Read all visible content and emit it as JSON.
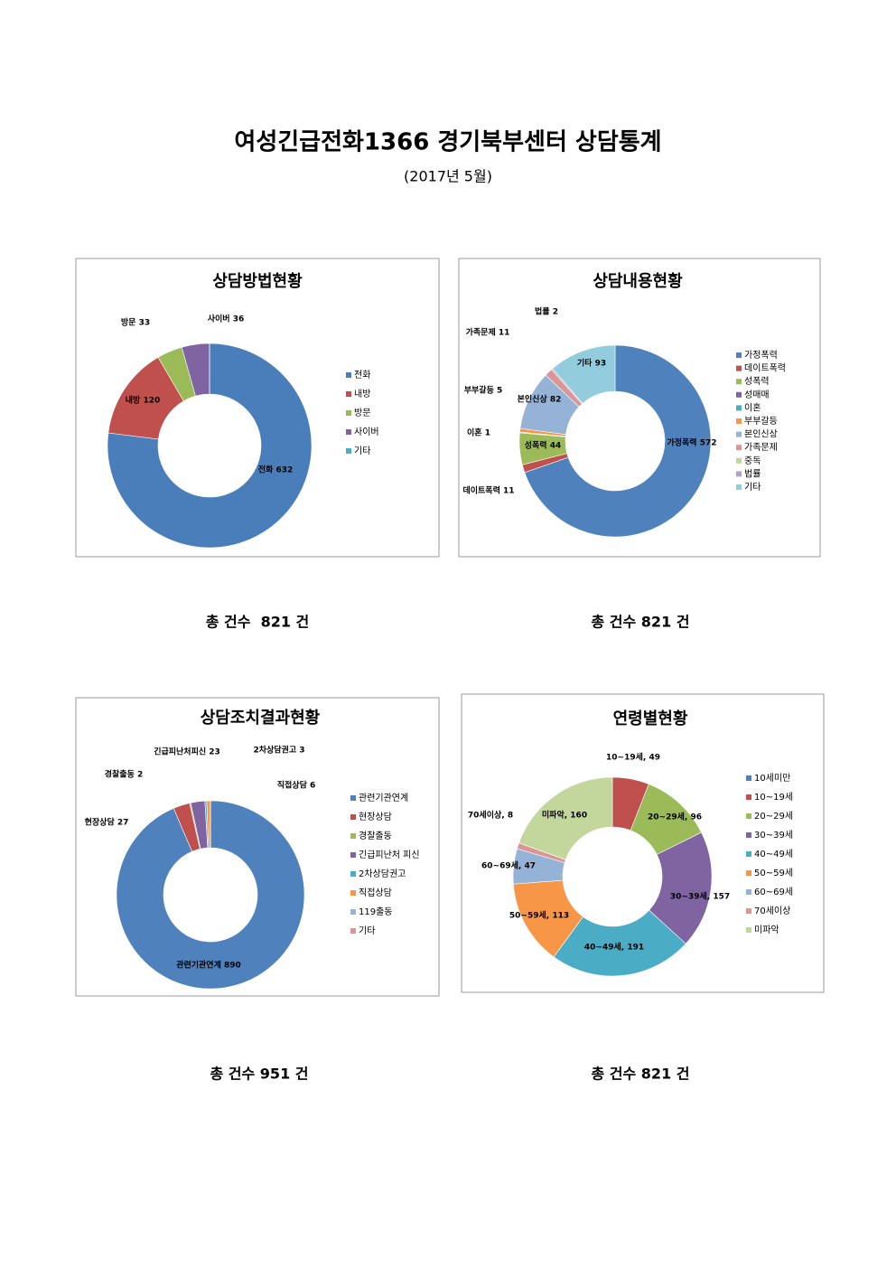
{
  "title": "여성긴급전화1366 경기북부센터 상담통계",
  "subtitle": "(2017년 5월)",
  "chart_data": [
    {
      "type": "donut",
      "title": "상담방법현황",
      "categories": [
        "전화",
        "내방",
        "방문",
        "사이버",
        "기타"
      ],
      "values": [
        632,
        120,
        33,
        36,
        0
      ],
      "value_labels": [
        "전화 632",
        "내방 120",
        "방문 33",
        "사이버 36",
        null
      ],
      "colors": [
        "#4a7ebb",
        "#c0504d",
        "#9bbb59",
        "#8064a2",
        "#4bacc6"
      ],
      "caption": "총 건수  821 건"
    },
    {
      "type": "donut",
      "title": "상담내용현황",
      "categories": [
        "가정폭력",
        "데이트폭력",
        "성폭력",
        "성매매",
        "이혼",
        "부부갈등",
        "본인신상",
        "가족문제",
        "중독",
        "법률",
        "기타"
      ],
      "values": [
        572,
        11,
        44,
        0,
        1,
        5,
        82,
        11,
        0,
        2,
        93
      ],
      "value_labels": [
        "가정폭력 572",
        "데이트폭력 11",
        "성폭력 44",
        null,
        "이혼 1",
        "부부갈등 5",
        "본인신상 82",
        "가족문제 11",
        null,
        "법률 2",
        "기타 93"
      ],
      "colors": [
        "#4f81bd",
        "#c0504d",
        "#9bbb59",
        "#8064a2",
        "#4bacc6",
        "#f79646",
        "#95b3d7",
        "#d99694",
        "#c3d69b",
        "#b3a2c7",
        "#93cddd"
      ],
      "caption": "총 건수 821 건"
    },
    {
      "type": "donut",
      "title": "상담조치결과현황",
      "categories": [
        "관련기관연계",
        "현장상담",
        "경찰출동",
        "긴급피난처 피신",
        "2차상담권고",
        "직접상담",
        "119출동",
        "기타"
      ],
      "values": [
        890,
        27,
        2,
        23,
        3,
        6,
        0,
        0
      ],
      "value_labels": [
        "관련기관연계 890",
        "현장상담 27",
        "경찰출동 2",
        "긴급피난처피신 23",
        "2차상담권고 3",
        "직접상담 6",
        null,
        null
      ],
      "colors": [
        "#4f81bd",
        "#c0504d",
        "#9bbb59",
        "#8064a2",
        "#4bacc6",
        "#f79646",
        "#95b3d7",
        "#d99694"
      ],
      "caption": "총 건수 951 건"
    },
    {
      "type": "donut",
      "title": "연령별현황",
      "categories": [
        "10세미만",
        "10~19세",
        "20~29세",
        "30~39세",
        "40~49세",
        "50~59세",
        "60~69세",
        "70세이상",
        "미파악"
      ],
      "values": [
        0,
        49,
        96,
        157,
        191,
        113,
        47,
        8,
        160
      ],
      "value_labels": [
        null,
        "10~19세, 49",
        "20~29세, 96",
        "30~39세, 157",
        "40~49세, 191",
        "50~59세, 113",
        "60~69세, 47",
        "70세이상, 8",
        "미파악, 160"
      ],
      "colors": [
        "#4f81bd",
        "#c0504d",
        "#9bbb59",
        "#8064a2",
        "#4bacc6",
        "#f79646",
        "#95b3d7",
        "#d99694",
        "#c3d69b"
      ],
      "caption": "총 건수 821 건"
    }
  ]
}
